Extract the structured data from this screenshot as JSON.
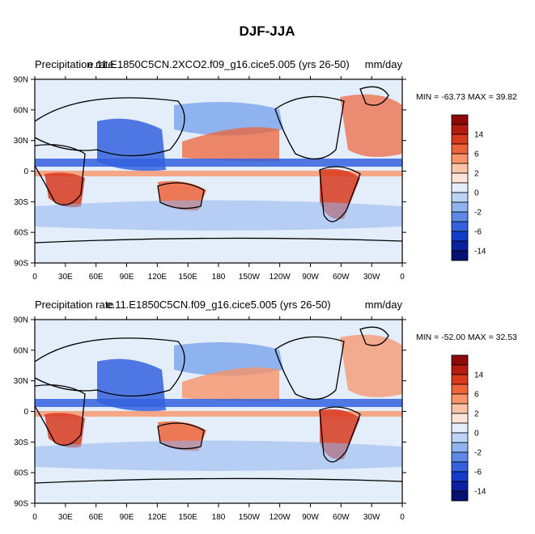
{
  "figure": {
    "title": "DJF-JJA"
  },
  "colorbar": {
    "levels": [
      "14",
      "6",
      "2",
      "0",
      "-2",
      "-6",
      "-14"
    ],
    "colors": [
      "#8c0a0a",
      "#b51c10",
      "#d83a1e",
      "#ee6338",
      "#f7946a",
      "#fbc3a6",
      "#fde4d6",
      "#e4eefb",
      "#bcd3f6",
      "#8fb3ee",
      "#5e8ae6",
      "#3461de",
      "#133ccb",
      "#0a229f",
      "#061170"
    ]
  },
  "panels": [
    {
      "left_title": "Precipitation rate",
      "center_title": "e.11.E1850C5CN.2XCO2.f09_g16.cice5.005 (yrs 26-50)",
      "right_title": "mm/day",
      "stats": "MIN = -63.73 MAX =  39.82"
    },
    {
      "left_title": "Precipitation rate",
      "center_title": "e.11.E1850C5CN.f09_g16.cice5.005 (yrs 26-50)",
      "right_title": "mm/day",
      "stats": "MIN = -52.00 MAX =  32.53"
    }
  ],
  "chart_data": [
    {
      "type": "heatmap",
      "title": "Precipitation rate",
      "subtitle": "e.11.E1850C5CN.2XCO2.f09_g16.cice5.005 (yrs 26-50)",
      "units": "mm/day",
      "min": -63.73,
      "max": 39.82,
      "x_ticks": [
        "0",
        "30E",
        "60E",
        "90E",
        "120E",
        "150E",
        "180",
        "150W",
        "120W",
        "90W",
        "60W",
        "30W",
        "0"
      ],
      "y_ticks": [
        "90N",
        "60N",
        "30N",
        "0",
        "30S",
        "60S",
        "90S"
      ],
      "xlim": [
        0,
        360
      ],
      "ylim": [
        -90,
        90
      ],
      "colorbar_labels": [
        "14",
        "6",
        "2",
        "0",
        "-2",
        "-6",
        "-14"
      ]
    },
    {
      "type": "heatmap",
      "title": "Precipitation rate",
      "subtitle": "e.11.E1850C5CN.f09_g16.cice5.005 (yrs 26-50)",
      "units": "mm/day",
      "min": -52.0,
      "max": 32.53,
      "x_ticks": [
        "0",
        "30E",
        "60E",
        "90E",
        "120E",
        "150E",
        "180",
        "150W",
        "120W",
        "90W",
        "60W",
        "30W",
        "0"
      ],
      "y_ticks": [
        "90N",
        "60N",
        "30N",
        "0",
        "30S",
        "60S",
        "90S"
      ],
      "xlim": [
        0,
        360
      ],
      "ylim": [
        -90,
        90
      ],
      "colorbar_labels": [
        "14",
        "6",
        "2",
        "0",
        "-2",
        "-6",
        "-14"
      ]
    }
  ]
}
